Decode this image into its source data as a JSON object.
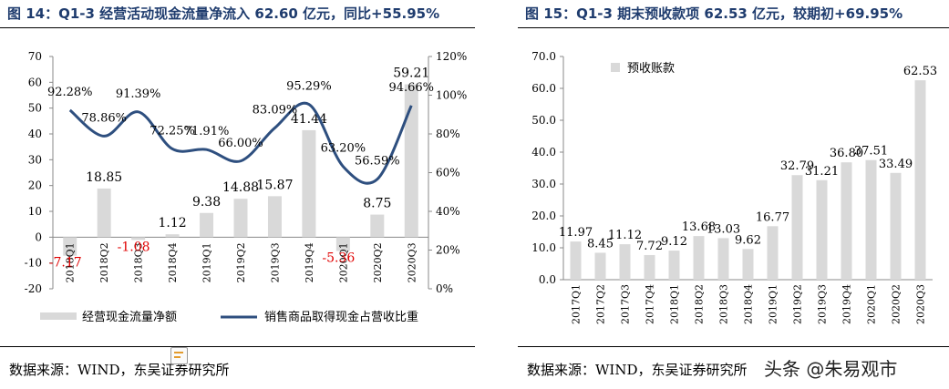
{
  "left_figure": {
    "title": "图 14：Q1-3 经营活动现金流量净流入 62.60 亿元，同比+55.95%",
    "source": "数据来源：WIND，东吴证券研究所"
  },
  "right_figure": {
    "title": "图 15：Q1-3 期末预收款项 62.53 亿元，较期初+69.95%",
    "source": "数据来源：WIND，东吴证券研究所"
  },
  "watermark": "头条 @朱易观市",
  "chart_data": [
    {
      "type": "bar+line",
      "categories": [
        "2018Q1",
        "2018Q2",
        "2018Q3",
        "2018Q4",
        "2019Q1",
        "2019Q2",
        "2019Q3",
        "2019Q4",
        "2020Q1",
        "2020Q2",
        "2020Q3"
      ],
      "bar_series": {
        "name": "经营现金流量净额",
        "values": [
          -7.17,
          18.85,
          -1.08,
          1.12,
          9.38,
          14.88,
          15.87,
          41.44,
          -5.36,
          8.75,
          59.21
        ],
        "labels": [
          "-7.17",
          "18.85",
          "-1.08",
          "1.12",
          "9.38",
          "14.88",
          "15.87",
          "41.44",
          "-5.36",
          "8.75",
          "59.21"
        ],
        "color": "#d9d9d9"
      },
      "line_series": {
        "name": "销售商品取得现金占营收比重",
        "values": [
          92.28,
          78.86,
          91.39,
          72.25,
          71.91,
          66.0,
          83.09,
          95.29,
          63.2,
          56.59,
          94.66
        ],
        "labels": [
          "92.28%",
          "78.86%",
          "91.39%",
          "72.25%",
          "71.91%",
          "66.00%",
          "83.09%",
          "95.29%",
          "63.20%",
          "56.59%",
          "94.66%"
        ],
        "color": "#2e4f7f"
      },
      "negative_label_color": "#e00000",
      "y_left": {
        "min": -20,
        "max": 70,
        "ticks": [
          "-20",
          "-10",
          "0",
          "10",
          "20",
          "30",
          "40",
          "50",
          "60",
          "70"
        ]
      },
      "y_right": {
        "min": 0,
        "max": 120,
        "ticks": [
          "0%",
          "20%",
          "40%",
          "60%",
          "80%",
          "100%",
          "120%"
        ]
      },
      "legend": {
        "position": "bottom",
        "items": [
          "经营现金流量净额",
          "销售商品取得现金占营收比重"
        ]
      },
      "grid": false
    },
    {
      "type": "bar",
      "categories": [
        "2017Q1",
        "2017Q2",
        "2017Q3",
        "2017Q4",
        "2018Q1",
        "2018Q2",
        "2018Q3",
        "2018Q4",
        "2019Q1",
        "2019Q2",
        "2019Q3",
        "2019Q4",
        "2020Q1",
        "2020Q2",
        "2020Q3"
      ],
      "series": [
        {
          "name": "预收账款",
          "values": [
            11.97,
            8.45,
            11.12,
            7.72,
            9.12,
            13.68,
            13.03,
            9.62,
            16.77,
            32.79,
            31.21,
            36.8,
            37.51,
            33.49,
            62.53
          ],
          "labels": [
            "11.97",
            "8.45",
            "11.12",
            "7.72",
            "9.12",
            "13.68",
            "13.03",
            "9.62",
            "16.77",
            "32.79",
            "31.21",
            "36.80",
            "37.51",
            "33.49",
            "62.53"
          ],
          "color": "#d9d9d9"
        }
      ],
      "ylim": [
        0,
        70
      ],
      "yticks": [
        "0.0",
        "10.0",
        "20.0",
        "30.0",
        "40.0",
        "50.0",
        "60.0",
        "70.0"
      ],
      "legend": {
        "position": "top-left",
        "items": [
          "预收账款"
        ]
      },
      "grid": false
    }
  ]
}
